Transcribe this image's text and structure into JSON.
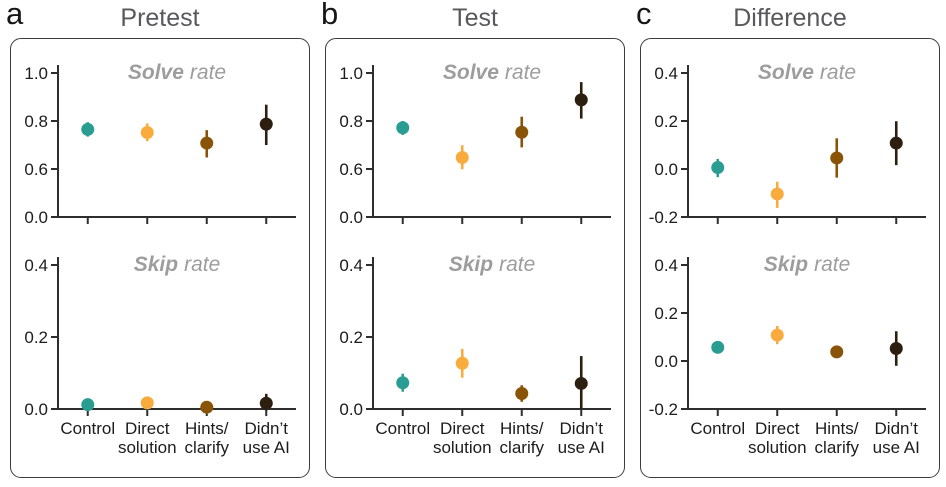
{
  "figure": {
    "colors": {
      "control": "#2a9d93",
      "direct_solution": "#f9ac3d",
      "hints_clarify": "#8a5408",
      "didnt_use_ai": "#2d1f10",
      "panel_title_gray": "#59595b",
      "subplot_title_gray": "#9d9d9d",
      "axis_black": "#2e2e2e",
      "tick_label_black": "#1c1c1c",
      "box_border": "#3c3c3c"
    },
    "categories": [
      {
        "key": "control",
        "label": "Control",
        "label_lines": [
          "Control"
        ]
      },
      {
        "key": "direct_solution",
        "label": "Direct solution",
        "label_lines": [
          "Direct",
          "solution"
        ]
      },
      {
        "key": "hints_clarify",
        "label": "Hints/clarify",
        "label_lines": [
          "Hints/",
          "clarify"
        ]
      },
      {
        "key": "didnt_use_ai",
        "label": "Didn’t use AI",
        "label_lines": [
          "Didn’t",
          "use AI"
        ]
      }
    ]
  },
  "chart_data": [
    {
      "panel": "a",
      "title": "Pretest",
      "subplots": [
        {
          "type": "scatter",
          "title_em": "Solve",
          "title_rest": "rate",
          "yticks": [
            1.0,
            0.8,
            0.6,
            0.0
          ],
          "axis_break": true,
          "show_x_labels": false,
          "points": [
            {
              "category": "Control",
              "color": "control",
              "value": 0.765,
              "ci_low": 0.735,
              "ci_high": 0.795
            },
            {
              "category": "Direct solution",
              "color": "direct_solution",
              "value": 0.752,
              "ci_low": 0.716,
              "ci_high": 0.79
            },
            {
              "category": "Hints/clarify",
              "color": "hints_clarify",
              "value": 0.708,
              "ci_low": 0.648,
              "ci_high": 0.762
            },
            {
              "category": "Didn’t use AI",
              "color": "didnt_use_ai",
              "value": 0.787,
              "ci_low": 0.7,
              "ci_high": 0.868
            }
          ]
        },
        {
          "type": "scatter",
          "title_em": "Skip",
          "title_rest": "rate",
          "yticks": [
            0.4,
            0.2,
            0.0
          ],
          "axis_break": false,
          "show_x_labels": true,
          "points": [
            {
              "category": "Control",
              "color": "control",
              "value": 0.012,
              "ci_low": 0.004,
              "ci_high": 0.021
            },
            {
              "category": "Direct solution",
              "color": "direct_solution",
              "value": 0.017,
              "ci_low": 0.008,
              "ci_high": 0.027
            },
            {
              "category": "Hints/clarify",
              "color": "hints_clarify",
              "value": 0.005,
              "ci_low": 0.001,
              "ci_high": 0.011
            },
            {
              "category": "Didn’t use AI",
              "color": "didnt_use_ai",
              "value": 0.016,
              "ci_low": -0.004,
              "ci_high": 0.042
            }
          ]
        }
      ]
    },
    {
      "panel": "b",
      "title": "Test",
      "subplots": [
        {
          "type": "scatter",
          "title_em": "Solve",
          "title_rest": "rate",
          "yticks": [
            1.0,
            0.8,
            0.6,
            0.0
          ],
          "axis_break": true,
          "show_x_labels": false,
          "points": [
            {
              "category": "Control",
              "color": "control",
              "value": 0.772,
              "ci_low": 0.742,
              "ci_high": 0.8
            },
            {
              "category": "Direct solution",
              "color": "direct_solution",
              "value": 0.648,
              "ci_low": 0.597,
              "ci_high": 0.699
            },
            {
              "category": "Hints/clarify",
              "color": "hints_clarify",
              "value": 0.753,
              "ci_low": 0.69,
              "ci_high": 0.818
            },
            {
              "category": "Didn’t use AI",
              "color": "didnt_use_ai",
              "value": 0.888,
              "ci_low": 0.81,
              "ci_high": 0.962
            }
          ]
        },
        {
          "type": "scatter",
          "title_em": "Skip",
          "title_rest": "rate",
          "yticks": [
            0.4,
            0.2,
            0.0
          ],
          "axis_break": false,
          "show_x_labels": true,
          "points": [
            {
              "category": "Control",
              "color": "control",
              "value": 0.073,
              "ci_low": 0.048,
              "ci_high": 0.098
            },
            {
              "category": "Direct solution",
              "color": "direct_solution",
              "value": 0.127,
              "ci_low": 0.087,
              "ci_high": 0.167
            },
            {
              "category": "Hints/clarify",
              "color": "hints_clarify",
              "value": 0.043,
              "ci_low": 0.02,
              "ci_high": 0.066
            },
            {
              "category": "Didn’t use AI",
              "color": "didnt_use_ai",
              "value": 0.071,
              "ci_low": 0.0,
              "ci_high": 0.147
            }
          ]
        }
      ]
    },
    {
      "panel": "c",
      "title": "Difference",
      "subplots": [
        {
          "type": "scatter",
          "title_em": "Solve",
          "title_rest": "rate",
          "yticks": [
            0.4,
            0.2,
            0.0,
            -0.2
          ],
          "axis_break": false,
          "show_x_labels": false,
          "points": [
            {
              "category": "Control",
              "color": "control",
              "value": 0.006,
              "ci_low": -0.034,
              "ci_high": 0.042
            },
            {
              "category": "Direct solution",
              "color": "direct_solution",
              "value": -0.104,
              "ci_low": -0.162,
              "ci_high": -0.053
            },
            {
              "category": "Hints/clarify",
              "color": "hints_clarify",
              "value": 0.046,
              "ci_low": -0.036,
              "ci_high": 0.128
            },
            {
              "category": "Didn’t use AI",
              "color": "didnt_use_ai",
              "value": 0.108,
              "ci_low": 0.016,
              "ci_high": 0.199
            }
          ]
        },
        {
          "type": "scatter",
          "title_em": "Skip",
          "title_rest": "rate",
          "yticks": [
            0.4,
            0.2,
            0.0,
            -0.2
          ],
          "axis_break": false,
          "show_x_labels": true,
          "points": [
            {
              "category": "Control",
              "color": "control",
              "value": 0.057,
              "ci_low": 0.033,
              "ci_high": 0.081
            },
            {
              "category": "Direct solution",
              "color": "direct_solution",
              "value": 0.108,
              "ci_low": 0.07,
              "ci_high": 0.146
            },
            {
              "category": "Hints/clarify",
              "color": "hints_clarify",
              "value": 0.038,
              "ci_low": 0.016,
              "ci_high": 0.061
            },
            {
              "category": "Didn’t use AI",
              "color": "didnt_use_ai",
              "value": 0.052,
              "ci_low": -0.02,
              "ci_high": 0.124
            }
          ]
        }
      ]
    }
  ]
}
